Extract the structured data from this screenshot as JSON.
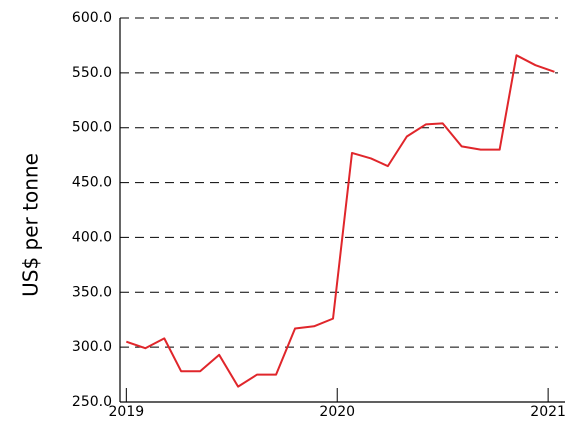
{
  "chart_data": {
    "type": "line",
    "y_label": "US$ per tonne",
    "x": [
      2019.0,
      2019.09,
      2019.18,
      2019.26,
      2019.35,
      2019.44,
      2019.53,
      2019.62,
      2019.71,
      2019.8,
      2019.89,
      2019.98,
      2020.07,
      2020.16,
      2020.24,
      2020.33,
      2020.42,
      2020.5,
      2020.59,
      2020.68,
      2020.77,
      2020.85,
      2020.94,
      2021.03
    ],
    "series": [
      {
        "color": "#e0262b",
        "values": [
          305,
          299,
          308,
          278,
          278,
          293,
          264,
          275,
          275,
          317,
          319,
          326,
          477,
          472,
          465,
          492,
          503,
          504,
          483,
          480,
          480,
          566,
          557,
          551
        ]
      }
    ],
    "xlim": [
      2018.97,
      2021.08
    ],
    "xticks": [
      2019,
      2020,
      2021
    ],
    "ylim": [
      250,
      600
    ],
    "yticks": [
      {
        "value": 250,
        "label": "250.0"
      },
      {
        "value": 300,
        "label": "300.0"
      },
      {
        "value": 350,
        "label": "350.0"
      },
      {
        "value": 400,
        "label": "400.0"
      },
      {
        "value": 450,
        "label": "450.0"
      },
      {
        "value": 500,
        "label": "500.0"
      },
      {
        "value": 550,
        "label": "550.0"
      },
      {
        "value": 600,
        "label": "600.0"
      }
    ],
    "grid": true
  }
}
